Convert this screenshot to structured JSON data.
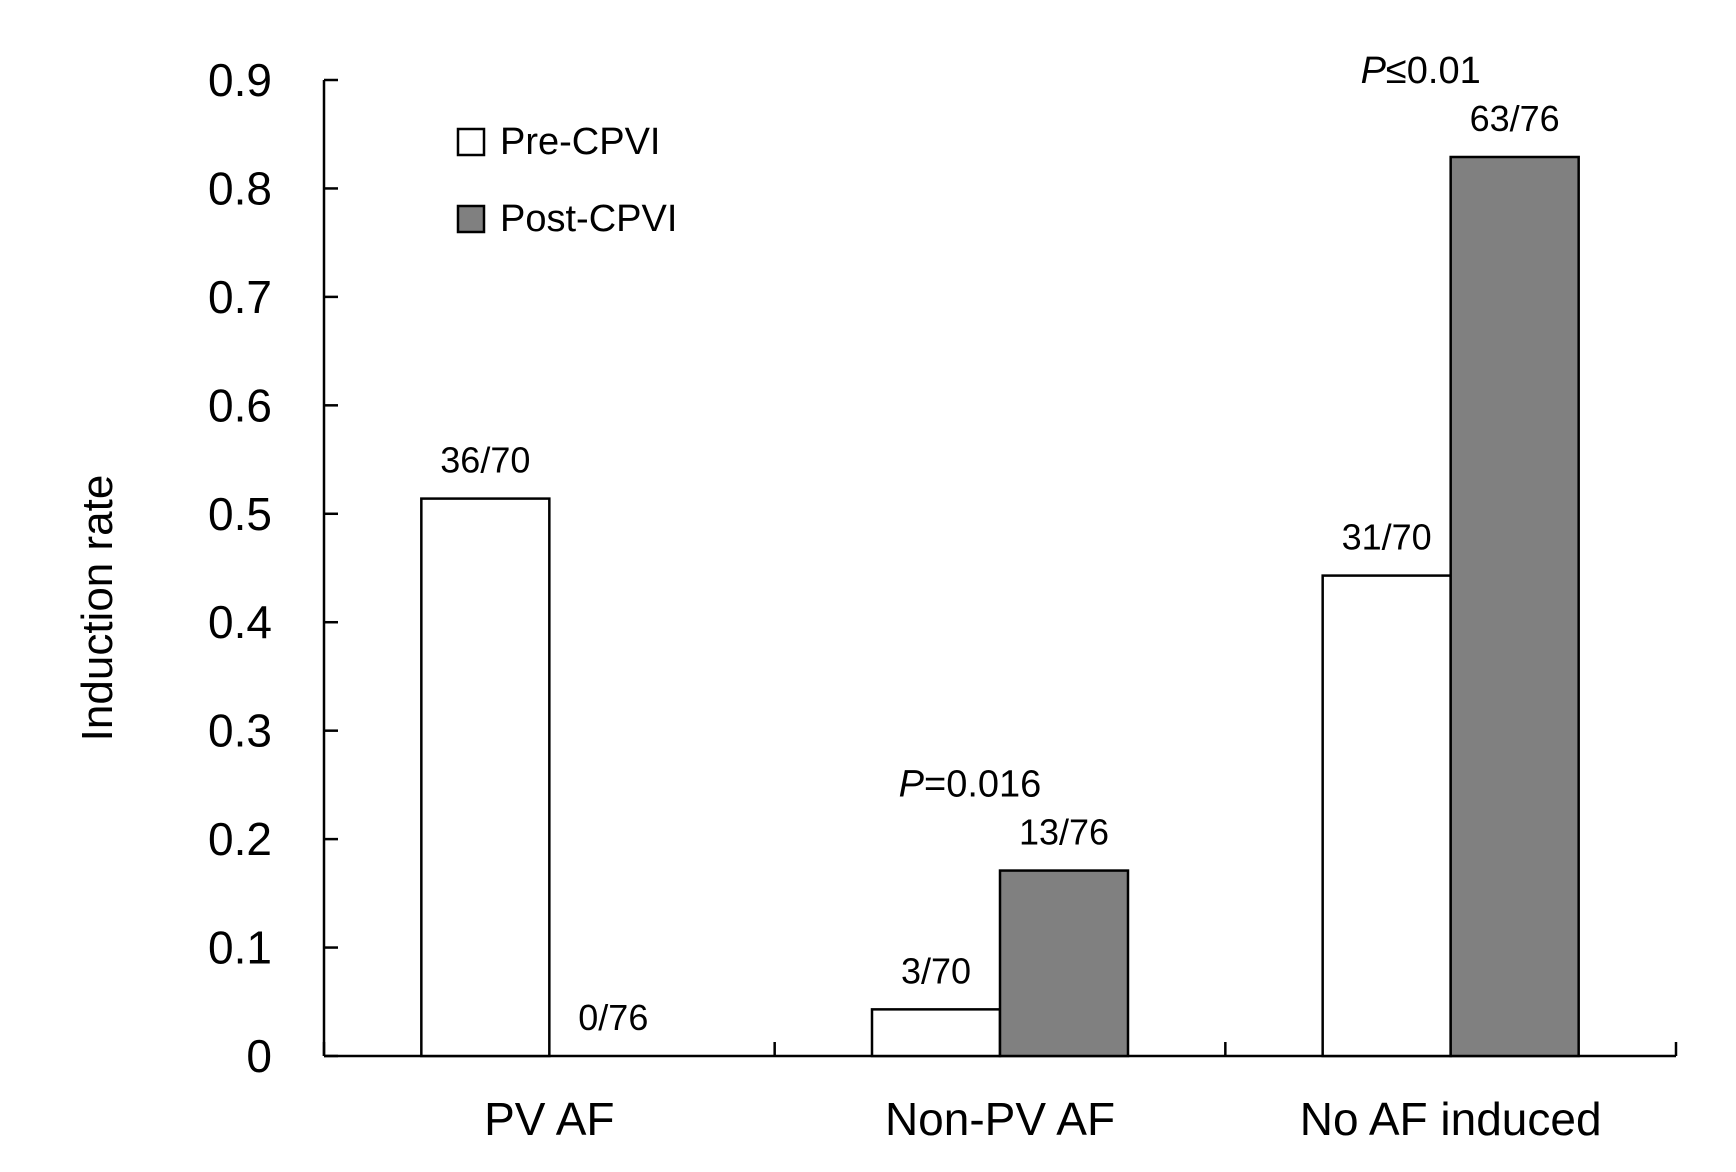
{
  "chart_data": {
    "type": "bar",
    "title": "",
    "xlabel": "",
    "ylabel": "Induction rate",
    "ylim": [
      0,
      0.9
    ],
    "yticks": [
      0,
      0.1,
      0.2,
      0.3,
      0.4,
      0.5,
      0.6,
      0.7,
      0.8,
      0.9
    ],
    "ytick_labels": [
      "0",
      "0.1",
      "0.2",
      "0.3",
      "0.4",
      "0.5",
      "0.6",
      "0.7",
      "0.8",
      "0.9"
    ],
    "grid": false,
    "legend_position": "top-left",
    "categories": [
      "PV AF",
      "Non-PV AF",
      "No AF induced"
    ],
    "series": [
      {
        "name": "Pre-CPVI",
        "color": "#ffffff",
        "values": [
          0.514,
          0.043,
          0.443
        ],
        "labels": [
          "36/70",
          "3/70",
          "31/70"
        ]
      },
      {
        "name": "Post-CPVI",
        "color": "#808080",
        "values": [
          0.0,
          0.171,
          0.829
        ],
        "labels": [
          "0/76",
          "13/76",
          "63/76"
        ]
      }
    ],
    "annotations": [
      {
        "category_index": 1,
        "italic": "P",
        "text": "=0.016"
      },
      {
        "category_index": 2,
        "italic": "P",
        "text": "≤0.01"
      }
    ]
  }
}
